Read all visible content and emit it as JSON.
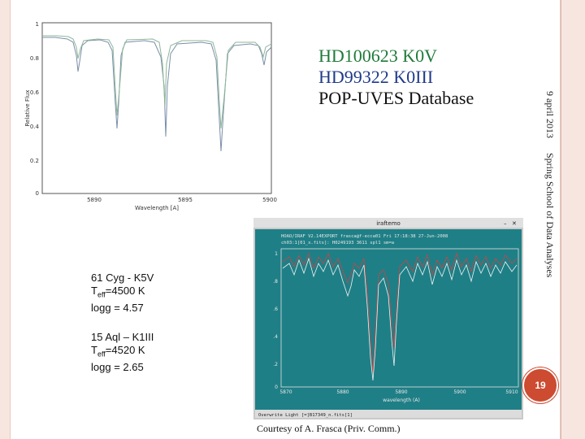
{
  "slide": {
    "title_line1": "HD100623 K0V",
    "title_line2": "HD99322 K0III",
    "title_line3": "POP-UVES Database",
    "date": "9 april 2013",
    "school": "Spring School of Data Analyses",
    "page_number": "19",
    "courtesy": "Courtesy of A. Frasca (Priv. Comm.)"
  },
  "star1": {
    "name": "61 Cyg - K5V",
    "teff_label": "T",
    "teff_sub": "eff",
    "teff_value": "=4500 K",
    "logg": "logg = 4.57"
  },
  "star2": {
    "name": "15 Aql – K1III",
    "teff_label": "T",
    "teff_sub": "eff",
    "teff_value": "=4520 K",
    "logg": "logg = 2.65"
  },
  "plot1": {
    "ylabel": "Relative Flux",
    "xlabel": "Wavelength [A]",
    "yticks": [
      "1",
      "0.8",
      "0.6",
      "0.4",
      "0.2",
      "0"
    ],
    "xticks": [
      "5890",
      "5895",
      "5900"
    ]
  },
  "plot2": {
    "window_title": "iraftemo",
    "header_line1": "HOAO/IRAF V2.14EXPORT frasca@f-ecca01 Fri 17:18:38 27-Jun-2008",
    "header_line2": "ch03:1[01_x.fits]: H0249193 3611 spl1 sm=a",
    "yticks": [
      "1",
      ".8",
      ".6",
      ".4",
      ".2",
      "0"
    ],
    "xticks": [
      "5870",
      "5880",
      "5890",
      "5900",
      "5910"
    ],
    "xlabel": "wavelength (A)",
    "status": "Overwrite Light [=]B17349_n.fits[1]"
  },
  "colors": {
    "border": "#f7e6e0",
    "badge": "#cc4b31",
    "title_green": "#1f7a3a",
    "title_blue": "#1f3a8a"
  }
}
